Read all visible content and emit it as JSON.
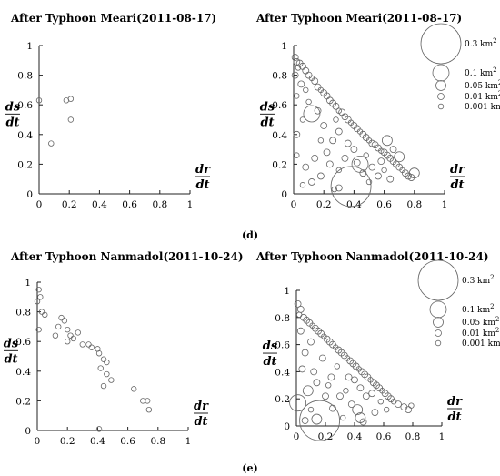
{
  "panel_labels": [
    "(d)",
    "(e)"
  ],
  "legend_entries": [
    "0.3 km",
    "0.1 km",
    "0.05 km",
    "0.01 km",
    "0.001 km"
  ],
  "legend_sup": "2",
  "chart_data": [
    {
      "type": "scatter",
      "title": "After Typhoon Meari(2011-08-17)",
      "xlabel_num": "dr",
      "xlabel_den": "dt",
      "ylabel_num": "ds",
      "ylabel_den": "dt",
      "xlim": [
        0,
        1
      ],
      "ylim": [
        0,
        1
      ],
      "xticks": [
        "0",
        "0.2",
        "0.4",
        "0.6",
        "0.8",
        "1"
      ],
      "yticks": [
        "0",
        "0.2",
        "0.4",
        "0.6",
        "0.8",
        "1"
      ],
      "legend": [],
      "points": [
        {
          "x": 0.0,
          "y": 0.63,
          "s": 0.001
        },
        {
          "x": 0.08,
          "y": 0.34,
          "s": 0.001
        },
        {
          "x": 0.18,
          "y": 0.63,
          "s": 0.001
        },
        {
          "x": 0.21,
          "y": 0.64,
          "s": 0.001
        },
        {
          "x": 0.21,
          "y": 0.5,
          "s": 0.001
        }
      ]
    },
    {
      "type": "scatter",
      "title": "After Typhoon Meari(2011-08-17)",
      "xlabel_num": "dr",
      "xlabel_den": "dt",
      "ylabel_num": "ds",
      "ylabel_den": "dt",
      "xlim": [
        0,
        1
      ],
      "ylim": [
        0,
        1
      ],
      "xticks": [
        "0",
        "0.2",
        "0.4",
        "0.6",
        "0.8",
        "1"
      ],
      "yticks": [
        "0",
        "0.2",
        "0.4",
        "0.6",
        "0.8",
        "1"
      ],
      "legend": [
        "0.3 km2",
        "0.1 km2",
        "0.05 km2",
        "0.01 km2",
        "0.001 km2"
      ],
      "points": [
        {
          "x": 0.01,
          "y": 0.92,
          "s": 0.01
        },
        {
          "x": 0.02,
          "y": 0.89,
          "s": 0.01
        },
        {
          "x": 0.04,
          "y": 0.88,
          "s": 0.01
        },
        {
          "x": 0.06,
          "y": 0.86,
          "s": 0.01
        },
        {
          "x": 0.03,
          "y": 0.85,
          "s": 0.001
        },
        {
          "x": 0.08,
          "y": 0.83,
          "s": 0.01
        },
        {
          "x": 0.1,
          "y": 0.8,
          "s": 0.01
        },
        {
          "x": 0.01,
          "y": 0.8,
          "s": 0.01
        },
        {
          "x": 0.12,
          "y": 0.78,
          "s": 0.001
        },
        {
          "x": 0.14,
          "y": 0.76,
          "s": 0.01
        },
        {
          "x": 0.05,
          "y": 0.74,
          "s": 0.01
        },
        {
          "x": 0.16,
          "y": 0.72,
          "s": 0.01
        },
        {
          "x": 0.18,
          "y": 0.7,
          "s": 0.001
        },
        {
          "x": 0.2,
          "y": 0.68,
          "s": 0.01
        },
        {
          "x": 0.22,
          "y": 0.66,
          "s": 0.01
        },
        {
          "x": 0.02,
          "y": 0.66,
          "s": 0.001
        },
        {
          "x": 0.24,
          "y": 0.63,
          "s": 0.01
        },
        {
          "x": 0.26,
          "y": 0.61,
          "s": 0.01
        },
        {
          "x": 0.1,
          "y": 0.62,
          "s": 0.001
        },
        {
          "x": 0.28,
          "y": 0.59,
          "s": 0.01
        },
        {
          "x": 0.3,
          "y": 0.56,
          "s": 0.001
        },
        {
          "x": 0.32,
          "y": 0.55,
          "s": 0.01
        },
        {
          "x": 0.12,
          "y": 0.54,
          "s": 0.1
        },
        {
          "x": 0.34,
          "y": 0.52,
          "s": 0.01
        },
        {
          "x": 0.36,
          "y": 0.5,
          "s": 0.01
        },
        {
          "x": 0.06,
          "y": 0.5,
          "s": 0.001
        },
        {
          "x": 0.38,
          "y": 0.48,
          "s": 0.001
        },
        {
          "x": 0.4,
          "y": 0.46,
          "s": 0.01
        },
        {
          "x": 0.2,
          "y": 0.46,
          "s": 0.01
        },
        {
          "x": 0.42,
          "y": 0.44,
          "s": 0.01
        },
        {
          "x": 0.44,
          "y": 0.42,
          "s": 0.001
        },
        {
          "x": 0.46,
          "y": 0.4,
          "s": 0.01
        },
        {
          "x": 0.02,
          "y": 0.4,
          "s": 0.01
        },
        {
          "x": 0.48,
          "y": 0.38,
          "s": 0.01
        },
        {
          "x": 0.5,
          "y": 0.36,
          "s": 0.001
        },
        {
          "x": 0.52,
          "y": 0.34,
          "s": 0.01
        },
        {
          "x": 0.54,
          "y": 0.33,
          "s": 0.01
        },
        {
          "x": 0.56,
          "y": 0.31,
          "s": 0.01
        },
        {
          "x": 0.58,
          "y": 0.29,
          "s": 0.001
        },
        {
          "x": 0.6,
          "y": 0.28,
          "s": 0.01
        },
        {
          "x": 0.62,
          "y": 0.26,
          "s": 0.01
        },
        {
          "x": 0.64,
          "y": 0.24,
          "s": 0.01
        },
        {
          "x": 0.66,
          "y": 0.22,
          "s": 0.01
        },
        {
          "x": 0.68,
          "y": 0.2,
          "s": 0.01
        },
        {
          "x": 0.7,
          "y": 0.18,
          "s": 0.01
        },
        {
          "x": 0.72,
          "y": 0.16,
          "s": 0.001
        },
        {
          "x": 0.74,
          "y": 0.14,
          "s": 0.01
        },
        {
          "x": 0.76,
          "y": 0.12,
          "s": 0.01
        },
        {
          "x": 0.78,
          "y": 0.11,
          "s": 0.01
        },
        {
          "x": 0.8,
          "y": 0.14,
          "s": 0.05
        },
        {
          "x": 0.4,
          "y": 0.3,
          "s": 0.01
        },
        {
          "x": 0.44,
          "y": 0.2,
          "s": 0.1
        },
        {
          "x": 0.42,
          "y": 0.21,
          "s": 0.01
        },
        {
          "x": 0.38,
          "y": 0.05,
          "s": 0.3
        },
        {
          "x": 0.3,
          "y": 0.04,
          "s": 0.01
        },
        {
          "x": 0.27,
          "y": 0.03,
          "s": 0.001
        },
        {
          "x": 0.08,
          "y": 0.18,
          "s": 0.01
        },
        {
          "x": 0.14,
          "y": 0.24,
          "s": 0.01
        },
        {
          "x": 0.24,
          "y": 0.2,
          "s": 0.01
        },
        {
          "x": 0.3,
          "y": 0.16,
          "s": 0.001
        },
        {
          "x": 0.34,
          "y": 0.24,
          "s": 0.01
        },
        {
          "x": 0.18,
          "y": 0.12,
          "s": 0.01
        },
        {
          "x": 0.12,
          "y": 0.08,
          "s": 0.01
        },
        {
          "x": 0.06,
          "y": 0.06,
          "s": 0.001
        },
        {
          "x": 0.02,
          "y": 0.26,
          "s": 0.001
        },
        {
          "x": 0.26,
          "y": 0.36,
          "s": 0.01
        },
        {
          "x": 0.18,
          "y": 0.36,
          "s": 0.001
        },
        {
          "x": 0.3,
          "y": 0.42,
          "s": 0.01
        },
        {
          "x": 0.36,
          "y": 0.34,
          "s": 0.01
        },
        {
          "x": 0.48,
          "y": 0.26,
          "s": 0.001
        },
        {
          "x": 0.52,
          "y": 0.18,
          "s": 0.01
        },
        {
          "x": 0.56,
          "y": 0.12,
          "s": 0.01
        },
        {
          "x": 0.6,
          "y": 0.16,
          "s": 0.001
        },
        {
          "x": 0.66,
          "y": 0.3,
          "s": 0.01
        },
        {
          "x": 0.7,
          "y": 0.25,
          "s": 0.05
        },
        {
          "x": 0.62,
          "y": 0.36,
          "s": 0.05
        },
        {
          "x": 0.58,
          "y": 0.22,
          "s": 0.01
        },
        {
          "x": 0.64,
          "y": 0.1,
          "s": 0.01
        },
        {
          "x": 0.5,
          "y": 0.08,
          "s": 0.001
        },
        {
          "x": 0.46,
          "y": 0.14,
          "s": 0.01
        },
        {
          "x": 0.22,
          "y": 0.28,
          "s": 0.01
        },
        {
          "x": 0.28,
          "y": 0.5,
          "s": 0.001
        },
        {
          "x": 0.16,
          "y": 0.56,
          "s": 0.01
        },
        {
          "x": 0.08,
          "y": 0.7,
          "s": 0.001
        }
      ]
    },
    {
      "type": "scatter",
      "title": "After Typhoon Nanmadol(2011-10-24)",
      "xlabel_num": "dr",
      "xlabel_den": "dt",
      "ylabel_num": "ds",
      "ylabel_den": "dt",
      "xlim": [
        0,
        1
      ],
      "ylim": [
        0,
        1
      ],
      "xticks": [
        "0",
        "0.2",
        "0.4",
        "0.6",
        "0.8",
        "1"
      ],
      "yticks": [
        "0",
        "0.2",
        "0.4",
        "0.6",
        "0.8",
        "1"
      ],
      "legend": [],
      "points": [
        {
          "x": 0.01,
          "y": 0.95,
          "s": 0.001
        },
        {
          "x": 0.02,
          "y": 0.9,
          "s": 0.001
        },
        {
          "x": 0.0,
          "y": 0.87,
          "s": 0.001
        },
        {
          "x": 0.03,
          "y": 0.8,
          "s": 0.001
        },
        {
          "x": 0.05,
          "y": 0.78,
          "s": 0.001
        },
        {
          "x": 0.01,
          "y": 0.68,
          "s": 0.001
        },
        {
          "x": 0.16,
          "y": 0.76,
          "s": 0.001
        },
        {
          "x": 0.18,
          "y": 0.74,
          "s": 0.001
        },
        {
          "x": 0.14,
          "y": 0.7,
          "s": 0.001
        },
        {
          "x": 0.2,
          "y": 0.68,
          "s": 0.001
        },
        {
          "x": 0.12,
          "y": 0.64,
          "s": 0.001
        },
        {
          "x": 0.22,
          "y": 0.64,
          "s": 0.001
        },
        {
          "x": 0.24,
          "y": 0.62,
          "s": 0.001
        },
        {
          "x": 0.2,
          "y": 0.6,
          "s": 0.001
        },
        {
          "x": 0.27,
          "y": 0.66,
          "s": 0.001
        },
        {
          "x": 0.3,
          "y": 0.58,
          "s": 0.001
        },
        {
          "x": 0.34,
          "y": 0.58,
          "s": 0.001
        },
        {
          "x": 0.36,
          "y": 0.56,
          "s": 0.001
        },
        {
          "x": 0.4,
          "y": 0.55,
          "s": 0.001
        },
        {
          "x": 0.41,
          "y": 0.52,
          "s": 0.001
        },
        {
          "x": 0.44,
          "y": 0.48,
          "s": 0.001
        },
        {
          "x": 0.46,
          "y": 0.46,
          "s": 0.001
        },
        {
          "x": 0.42,
          "y": 0.42,
          "s": 0.001
        },
        {
          "x": 0.46,
          "y": 0.38,
          "s": 0.001
        },
        {
          "x": 0.44,
          "y": 0.3,
          "s": 0.001
        },
        {
          "x": 0.49,
          "y": 0.34,
          "s": 0.001
        },
        {
          "x": 0.64,
          "y": 0.28,
          "s": 0.001
        },
        {
          "x": 0.7,
          "y": 0.2,
          "s": 0.001
        },
        {
          "x": 0.73,
          "y": 0.2,
          "s": 0.001
        },
        {
          "x": 0.74,
          "y": 0.14,
          "s": 0.001
        },
        {
          "x": 0.41,
          "y": 0.01,
          "s": 0.001
        }
      ]
    },
    {
      "type": "scatter",
      "title": "After Typhoon Nanmadol(2011-10-24)",
      "xlabel_num": "dr",
      "xlabel_den": "dt",
      "ylabel_num": "ds",
      "ylabel_den": "dt",
      "xlim": [
        0,
        1
      ],
      "ylim": [
        0,
        1
      ],
      "xticks": [
        "0",
        "0.2",
        "0.4",
        "0.6",
        "0.8",
        "1"
      ],
      "yticks": [
        "0",
        "0.2",
        "0.4",
        "0.6",
        "0.8",
        "1"
      ],
      "legend": [
        "0.3 km2",
        "0.1 km2",
        "0.05 km2",
        "0.01 km2",
        "0.001 km2"
      ],
      "points": [
        {
          "x": 0.01,
          "y": 0.9,
          "s": 0.01
        },
        {
          "x": 0.03,
          "y": 0.86,
          "s": 0.01
        },
        {
          "x": 0.02,
          "y": 0.82,
          "s": 0.001
        },
        {
          "x": 0.05,
          "y": 0.8,
          "s": 0.01
        },
        {
          "x": 0.07,
          "y": 0.78,
          "s": 0.01
        },
        {
          "x": 0.09,
          "y": 0.76,
          "s": 0.01
        },
        {
          "x": 0.11,
          "y": 0.74,
          "s": 0.001
        },
        {
          "x": 0.13,
          "y": 0.72,
          "s": 0.01
        },
        {
          "x": 0.15,
          "y": 0.7,
          "s": 0.01
        },
        {
          "x": 0.03,
          "y": 0.7,
          "s": 0.01
        },
        {
          "x": 0.17,
          "y": 0.68,
          "s": 0.01
        },
        {
          "x": 0.19,
          "y": 0.66,
          "s": 0.001
        },
        {
          "x": 0.21,
          "y": 0.64,
          "s": 0.01
        },
        {
          "x": 0.23,
          "y": 0.62,
          "s": 0.01
        },
        {
          "x": 0.1,
          "y": 0.62,
          "s": 0.01
        },
        {
          "x": 0.25,
          "y": 0.6,
          "s": 0.01
        },
        {
          "x": 0.27,
          "y": 0.58,
          "s": 0.001
        },
        {
          "x": 0.29,
          "y": 0.56,
          "s": 0.01
        },
        {
          "x": 0.31,
          "y": 0.54,
          "s": 0.01
        },
        {
          "x": 0.06,
          "y": 0.54,
          "s": 0.01
        },
        {
          "x": 0.33,
          "y": 0.52,
          "s": 0.01
        },
        {
          "x": 0.35,
          "y": 0.5,
          "s": 0.001
        },
        {
          "x": 0.37,
          "y": 0.48,
          "s": 0.01
        },
        {
          "x": 0.18,
          "y": 0.5,
          "s": 0.01
        },
        {
          "x": 0.39,
          "y": 0.46,
          "s": 0.01
        },
        {
          "x": 0.41,
          "y": 0.44,
          "s": 0.01
        },
        {
          "x": 0.43,
          "y": 0.42,
          "s": 0.001
        },
        {
          "x": 0.45,
          "y": 0.4,
          "s": 0.01
        },
        {
          "x": 0.04,
          "y": 0.42,
          "s": 0.01
        },
        {
          "x": 0.47,
          "y": 0.38,
          "s": 0.01
        },
        {
          "x": 0.49,
          "y": 0.36,
          "s": 0.01
        },
        {
          "x": 0.51,
          "y": 0.34,
          "s": 0.001
        },
        {
          "x": 0.53,
          "y": 0.32,
          "s": 0.01
        },
        {
          "x": 0.55,
          "y": 0.3,
          "s": 0.01
        },
        {
          "x": 0.57,
          "y": 0.28,
          "s": 0.01
        },
        {
          "x": 0.59,
          "y": 0.26,
          "s": 0.001
        },
        {
          "x": 0.61,
          "y": 0.24,
          "s": 0.01
        },
        {
          "x": 0.63,
          "y": 0.22,
          "s": 0.01
        },
        {
          "x": 0.65,
          "y": 0.2,
          "s": 0.01
        },
        {
          "x": 0.67,
          "y": 0.18,
          "s": 0.001
        },
        {
          "x": 0.7,
          "y": 0.16,
          "s": 0.01
        },
        {
          "x": 0.74,
          "y": 0.14,
          "s": 0.01
        },
        {
          "x": 0.77,
          "y": 0.12,
          "s": 0.01
        },
        {
          "x": 0.79,
          "y": 0.15,
          "s": 0.001
        },
        {
          "x": 0.01,
          "y": 0.17,
          "s": 0.1
        },
        {
          "x": 0.08,
          "y": 0.26,
          "s": 0.05
        },
        {
          "x": 0.16,
          "y": 0.04,
          "s": 0.3
        },
        {
          "x": 0.14,
          "y": 0.05,
          "s": 0.05
        },
        {
          "x": 0.25,
          "y": 0.13,
          "s": 0.01
        },
        {
          "x": 0.3,
          "y": 0.22,
          "s": 0.01
        },
        {
          "x": 0.24,
          "y": 0.36,
          "s": 0.01
        },
        {
          "x": 0.14,
          "y": 0.32,
          "s": 0.01
        },
        {
          "x": 0.34,
          "y": 0.26,
          "s": 0.001
        },
        {
          "x": 0.38,
          "y": 0.16,
          "s": 0.01
        },
        {
          "x": 0.42,
          "y": 0.12,
          "s": 0.05
        },
        {
          "x": 0.44,
          "y": 0.06,
          "s": 0.05
        },
        {
          "x": 0.46,
          "y": 0.03,
          "s": 0.01
        },
        {
          "x": 0.54,
          "y": 0.1,
          "s": 0.01
        },
        {
          "x": 0.58,
          "y": 0.18,
          "s": 0.001
        },
        {
          "x": 0.48,
          "y": 0.22,
          "s": 0.01
        },
        {
          "x": 0.44,
          "y": 0.28,
          "s": 0.01
        },
        {
          "x": 0.36,
          "y": 0.36,
          "s": 0.01
        },
        {
          "x": 0.28,
          "y": 0.44,
          "s": 0.001
        },
        {
          "x": 0.2,
          "y": 0.22,
          "s": 0.01
        },
        {
          "x": 0.1,
          "y": 0.12,
          "s": 0.001
        },
        {
          "x": 0.06,
          "y": 0.04,
          "s": 0.01
        },
        {
          "x": 0.32,
          "y": 0.06,
          "s": 0.001
        },
        {
          "x": 0.52,
          "y": 0.24,
          "s": 0.01
        },
        {
          "x": 0.62,
          "y": 0.12,
          "s": 0.001
        },
        {
          "x": 0.4,
          "y": 0.34,
          "s": 0.01
        },
        {
          "x": 0.22,
          "y": 0.3,
          "s": 0.001
        },
        {
          "x": 0.12,
          "y": 0.4,
          "s": 0.01
        }
      ]
    }
  ]
}
